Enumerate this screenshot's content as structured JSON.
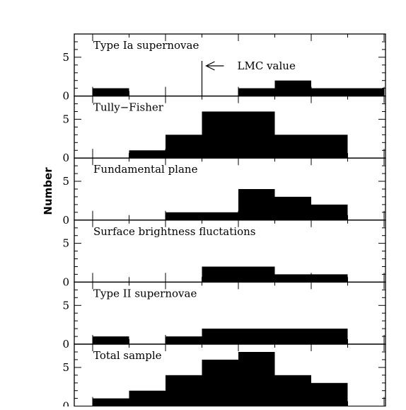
{
  "chart_data": {
    "type": "bar",
    "ylabel": "Number",
    "bins": 9,
    "ylim": [
      0,
      8
    ],
    "yticks": [
      0,
      5
    ],
    "color": "#000000",
    "panels": [
      {
        "name": "Type Ia supernovae",
        "values": [
          1,
          0,
          0,
          0,
          1,
          2,
          1,
          1,
          0
        ],
        "annotation": {
          "text": "LMC value",
          "at_bin_edge": 3
        }
      },
      {
        "name": "Tully−Fisher",
        "values": [
          0,
          1,
          3,
          6,
          6,
          3,
          3,
          0,
          0
        ]
      },
      {
        "name": "Fundamental plane",
        "values": [
          0,
          0,
          1,
          1,
          4,
          3,
          2,
          0,
          0
        ]
      },
      {
        "name": "Surface brightness fluctations",
        "values": [
          0,
          0,
          0,
          2,
          2,
          1,
          1,
          0,
          0
        ]
      },
      {
        "name": "Type II supernovae",
        "values": [
          1,
          0,
          1,
          2,
          2,
          2,
          2,
          0,
          0
        ]
      },
      {
        "name": "Total sample",
        "values": [
          1,
          2,
          4,
          6,
          7,
          4,
          3,
          0,
          0
        ]
      }
    ]
  }
}
